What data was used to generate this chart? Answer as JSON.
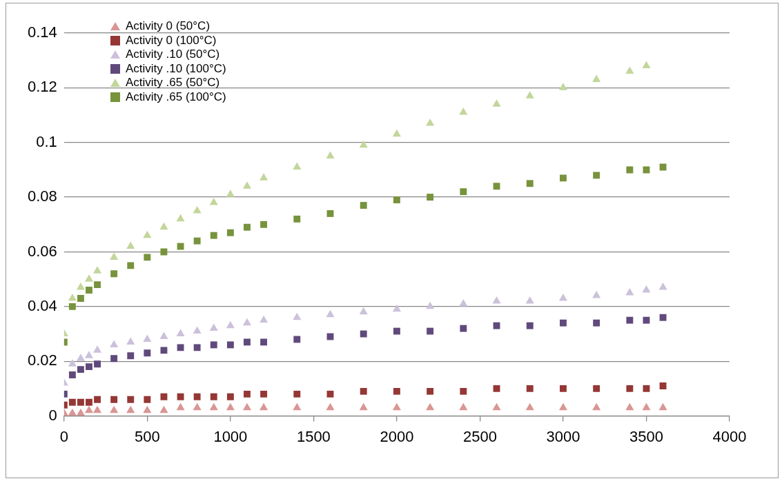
{
  "chart_data": {
    "type": "scatter",
    "x": [
      0,
      50,
      100,
      150,
      200,
      300,
      400,
      500,
      600,
      700,
      800,
      900,
      1000,
      1100,
      1200,
      1400,
      1600,
      1800,
      2000,
      2200,
      2400,
      2600,
      2800,
      3000,
      3200,
      3400,
      3500,
      3600
    ],
    "series": [
      {
        "name": "Activity 0 (50°C)",
        "color": "#d99694",
        "marker": "triangle",
        "values": [
          0.001,
          0.001,
          0.001,
          0.002,
          0.002,
          0.002,
          0.002,
          0.002,
          0.002,
          0.003,
          0.003,
          0.003,
          0.003,
          0.003,
          0.003,
          0.003,
          0.003,
          0.003,
          0.003,
          0.003,
          0.003,
          0.003,
          0.003,
          0.003,
          0.003,
          0.003,
          0.003,
          0.003
        ]
      },
      {
        "name": "Activity 0 (100°C)",
        "color": "#953735",
        "marker": "square",
        "values": [
          0.004,
          0.005,
          0.005,
          0.005,
          0.006,
          0.006,
          0.006,
          0.006,
          0.007,
          0.007,
          0.007,
          0.007,
          0.007,
          0.008,
          0.008,
          0.008,
          0.008,
          0.009,
          0.009,
          0.009,
          0.009,
          0.01,
          0.01,
          0.01,
          0.01,
          0.01,
          0.01,
          0.011
        ]
      },
      {
        "name": "Activity .10 (50°C)",
        "color": "#ccc1da",
        "marker": "triangle",
        "values": [
          0.012,
          0.019,
          0.021,
          0.022,
          0.024,
          0.026,
          0.027,
          0.028,
          0.029,
          0.03,
          0.031,
          0.032,
          0.033,
          0.034,
          0.035,
          0.036,
          0.037,
          0.038,
          0.039,
          0.04,
          0.041,
          0.042,
          0.042,
          0.043,
          0.044,
          0.045,
          0.046,
          0.047
        ]
      },
      {
        "name": "Activity .10 (100°C)",
        "color": "#604a7b",
        "marker": "square",
        "values": [
          0.008,
          0.015,
          0.017,
          0.018,
          0.019,
          0.021,
          0.022,
          0.023,
          0.024,
          0.025,
          0.025,
          0.026,
          0.026,
          0.027,
          0.027,
          0.028,
          0.029,
          0.03,
          0.031,
          0.031,
          0.032,
          0.033,
          0.033,
          0.034,
          0.034,
          0.035,
          0.035,
          0.036
        ]
      },
      {
        "name": "Activity .65 (50°C)",
        "color": "#c3d69b",
        "marker": "triangle",
        "values": [
          0.03,
          0.043,
          0.047,
          0.05,
          0.053,
          0.058,
          0.062,
          0.066,
          0.069,
          0.072,
          0.075,
          0.078,
          0.081,
          0.084,
          0.087,
          0.091,
          0.095,
          0.099,
          0.103,
          0.107,
          0.111,
          0.114,
          0.117,
          0.12,
          0.123,
          0.126,
          0.128,
          null
        ]
      },
      {
        "name": "Activity .65 (100°C)",
        "color": "#77933c",
        "marker": "square",
        "values": [
          0.027,
          0.04,
          0.043,
          0.046,
          0.048,
          0.052,
          0.055,
          0.058,
          0.06,
          0.062,
          0.064,
          0.066,
          0.067,
          0.069,
          0.07,
          0.072,
          0.074,
          0.077,
          0.079,
          0.08,
          0.082,
          0.084,
          0.085,
          0.087,
          0.088,
          0.09,
          0.09,
          0.091
        ]
      }
    ],
    "xlim": [
      0,
      4000
    ],
    "xticks": [
      0,
      500,
      1000,
      1500,
      2000,
      2500,
      3000,
      3500,
      4000
    ],
    "ylim": [
      0,
      0.14
    ],
    "yticks": [
      0,
      0.02,
      0.04,
      0.06,
      0.08,
      0.1,
      0.12,
      0.14
    ],
    "grid": "y",
    "legend": "top left"
  }
}
